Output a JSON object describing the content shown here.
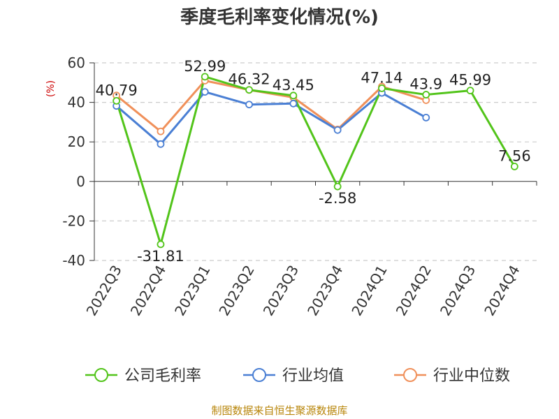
{
  "chart_data": {
    "type": "line",
    "title": "季度毛利率变化情况(%)",
    "ylabel": "(%)",
    "categories": [
      "2022Q3",
      "2022Q4",
      "2023Q1",
      "2023Q2",
      "2023Q3",
      "2023Q4",
      "2024Q1",
      "2024Q2",
      "2024Q3",
      "2024Q4"
    ],
    "ylim": [
      -40,
      60
    ],
    "yticks": [
      -40,
      -20,
      0,
      20,
      40,
      60
    ],
    "grid": true,
    "legend_position": "bottom",
    "series": [
      {
        "name": "公司毛利率",
        "color": "#52c41a",
        "values": [
          40.79,
          -31.81,
          52.99,
          46.32,
          43.45,
          -2.58,
          47.14,
          43.9,
          45.99,
          7.56
        ],
        "labels": [
          "40.79",
          "-31.81",
          "52.99",
          "46.32",
          "43.45",
          "-2.58",
          "47.14",
          "43.9",
          "45.99",
          "7.56"
        ]
      },
      {
        "name": "行业均值",
        "color": "#4a7fd4",
        "values": [
          38.2,
          18.9,
          45.3,
          38.9,
          39.4,
          26.0,
          44.8,
          32.3,
          null,
          null
        ]
      },
      {
        "name": "行业中位数",
        "color": "#f0905a",
        "values": [
          43.5,
          25.3,
          51.0,
          46.3,
          42.5,
          26.3,
          48.0,
          41.1,
          null,
          null
        ]
      }
    ]
  },
  "source": "制图数据来自恒生聚源数据库"
}
